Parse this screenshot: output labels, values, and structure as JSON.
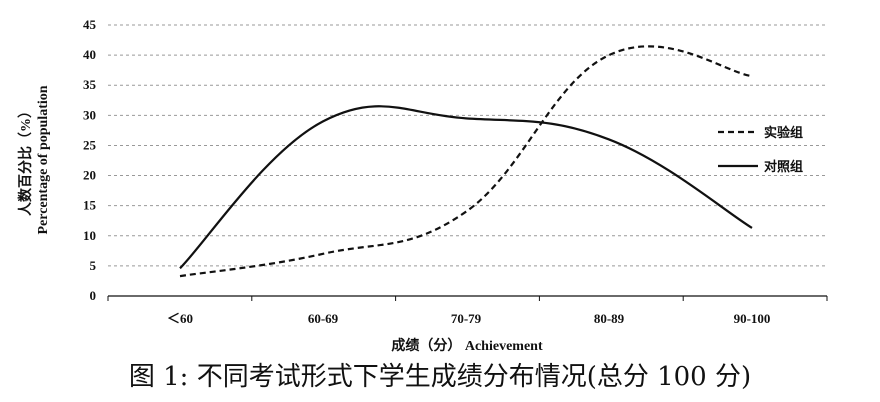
{
  "chart_data": {
    "type": "line",
    "categories": [
      "＜60",
      "60-69",
      "70-79",
      "80-89",
      "90-100"
    ],
    "series": [
      {
        "name": "实验组",
        "style": "dashed",
        "values": [
          3.3,
          7.0,
          14.0,
          40.0,
          36.5
        ]
      },
      {
        "name": "对照组",
        "style": "solid",
        "values": [
          4.6,
          29.0,
          29.5,
          26.0,
          11.3
        ]
      }
    ],
    "xlabel": "成绩（分） Achievement",
    "ylabel_cn": "人数百分比（%）",
    "ylabel_en": "Percentage of population",
    "ylim": [
      0,
      45
    ],
    "yticks": [
      0,
      5,
      10,
      15,
      20,
      25,
      30,
      35,
      40,
      45
    ],
    "grid": "horizontal dashed",
    "legend_position": "right",
    "line_color": "#111111"
  },
  "caption": "图 1: 不同考试形式下学生成绩分布情况(总分 100 分)"
}
